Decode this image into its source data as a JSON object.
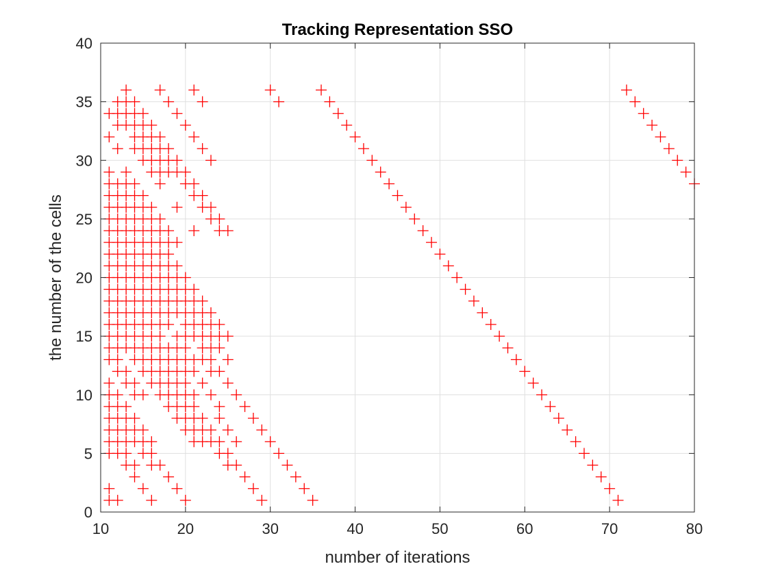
{
  "chart_data": {
    "type": "scatter",
    "title": "Tracking Representation SSO",
    "xlabel": "number of iterations",
    "ylabel": "the number of the cells",
    "xlim": [
      10,
      80
    ],
    "ylim": [
      0,
      40
    ],
    "xticks": [
      10,
      20,
      30,
      40,
      50,
      60,
      70,
      80
    ],
    "yticks": [
      0,
      5,
      10,
      15,
      20,
      25,
      30,
      35,
      40
    ],
    "grid": true,
    "marker": "+",
    "color": "#ff0000",
    "points": [
      [
        13,
        36
      ],
      [
        17,
        36
      ],
      [
        21,
        36
      ],
      [
        30,
        36
      ],
      [
        36,
        36
      ],
      [
        72,
        36
      ],
      [
        12,
        35
      ],
      [
        13,
        35
      ],
      [
        14,
        35
      ],
      [
        18,
        35
      ],
      [
        22,
        35
      ],
      [
        31,
        35
      ],
      [
        37,
        35
      ],
      [
        73,
        35
      ],
      [
        11,
        34
      ],
      [
        12,
        34
      ],
      [
        13,
        34
      ],
      [
        14,
        34
      ],
      [
        15,
        34
      ],
      [
        19,
        34
      ],
      [
        38,
        34
      ],
      [
        74,
        34
      ],
      [
        12,
        33
      ],
      [
        13,
        33
      ],
      [
        14,
        33
      ],
      [
        15,
        33
      ],
      [
        16,
        33
      ],
      [
        20,
        33
      ],
      [
        39,
        33
      ],
      [
        75,
        33
      ],
      [
        11,
        32
      ],
      [
        14,
        32
      ],
      [
        15,
        32
      ],
      [
        16,
        32
      ],
      [
        17,
        32
      ],
      [
        21,
        32
      ],
      [
        40,
        32
      ],
      [
        76,
        32
      ],
      [
        12,
        31
      ],
      [
        14,
        31
      ],
      [
        15,
        31
      ],
      [
        16,
        31
      ],
      [
        17,
        31
      ],
      [
        18,
        31
      ],
      [
        22,
        31
      ],
      [
        41,
        31
      ],
      [
        77,
        31
      ],
      [
        15,
        30
      ],
      [
        16,
        30
      ],
      [
        17,
        30
      ],
      [
        18,
        30
      ],
      [
        19,
        30
      ],
      [
        23,
        30
      ],
      [
        42,
        30
      ],
      [
        78,
        30
      ],
      [
        11,
        29
      ],
      [
        13,
        29
      ],
      [
        16,
        29
      ],
      [
        17,
        29
      ],
      [
        18,
        29
      ],
      [
        19,
        29
      ],
      [
        20,
        29
      ],
      [
        43,
        29
      ],
      [
        79,
        29
      ],
      [
        11,
        28
      ],
      [
        12,
        28
      ],
      [
        13,
        28
      ],
      [
        14,
        28
      ],
      [
        17,
        28
      ],
      [
        20,
        28
      ],
      [
        21,
        28
      ],
      [
        44,
        28
      ],
      [
        80,
        28
      ],
      [
        11,
        27
      ],
      [
        12,
        27
      ],
      [
        13,
        27
      ],
      [
        14,
        27
      ],
      [
        15,
        27
      ],
      [
        21,
        27
      ],
      [
        22,
        27
      ],
      [
        45,
        27
      ],
      [
        11,
        26
      ],
      [
        12,
        26
      ],
      [
        13,
        26
      ],
      [
        14,
        26
      ],
      [
        15,
        26
      ],
      [
        16,
        26
      ],
      [
        19,
        26
      ],
      [
        22,
        26
      ],
      [
        23,
        26
      ],
      [
        46,
        26
      ],
      [
        11,
        25
      ],
      [
        12,
        25
      ],
      [
        13,
        25
      ],
      [
        14,
        25
      ],
      [
        15,
        25
      ],
      [
        16,
        25
      ],
      [
        17,
        25
      ],
      [
        23,
        25
      ],
      [
        24,
        25
      ],
      [
        47,
        25
      ],
      [
        11,
        24
      ],
      [
        12,
        24
      ],
      [
        13,
        24
      ],
      [
        14,
        24
      ],
      [
        15,
        24
      ],
      [
        16,
        24
      ],
      [
        17,
        24
      ],
      [
        18,
        24
      ],
      [
        21,
        24
      ],
      [
        24,
        24
      ],
      [
        25,
        24
      ],
      [
        48,
        24
      ],
      [
        11,
        23
      ],
      [
        12,
        23
      ],
      [
        13,
        23
      ],
      [
        14,
        23
      ],
      [
        15,
        23
      ],
      [
        16,
        23
      ],
      [
        17,
        23
      ],
      [
        18,
        23
      ],
      [
        19,
        23
      ],
      [
        49,
        23
      ],
      [
        11,
        22
      ],
      [
        12,
        22
      ],
      [
        13,
        22
      ],
      [
        14,
        22
      ],
      [
        15,
        22
      ],
      [
        16,
        22
      ],
      [
        17,
        22
      ],
      [
        18,
        22
      ],
      [
        50,
        22
      ],
      [
        11,
        21
      ],
      [
        12,
        21
      ],
      [
        13,
        21
      ],
      [
        14,
        21
      ],
      [
        15,
        21
      ],
      [
        16,
        21
      ],
      [
        17,
        21
      ],
      [
        18,
        21
      ],
      [
        19,
        21
      ],
      [
        51,
        21
      ],
      [
        11,
        20
      ],
      [
        12,
        20
      ],
      [
        13,
        20
      ],
      [
        14,
        20
      ],
      [
        15,
        20
      ],
      [
        16,
        20
      ],
      [
        17,
        20
      ],
      [
        18,
        20
      ],
      [
        19,
        20
      ],
      [
        20,
        20
      ],
      [
        52,
        20
      ],
      [
        11,
        19
      ],
      [
        12,
        19
      ],
      [
        13,
        19
      ],
      [
        14,
        19
      ],
      [
        15,
        19
      ],
      [
        16,
        19
      ],
      [
        17,
        19
      ],
      [
        18,
        19
      ],
      [
        19,
        19
      ],
      [
        20,
        19
      ],
      [
        21,
        19
      ],
      [
        53,
        19
      ],
      [
        11,
        18
      ],
      [
        12,
        18
      ],
      [
        13,
        18
      ],
      [
        14,
        18
      ],
      [
        15,
        18
      ],
      [
        16,
        18
      ],
      [
        17,
        18
      ],
      [
        18,
        18
      ],
      [
        19,
        18
      ],
      [
        20,
        18
      ],
      [
        21,
        18
      ],
      [
        22,
        18
      ],
      [
        54,
        18
      ],
      [
        11,
        17
      ],
      [
        12,
        17
      ],
      [
        13,
        17
      ],
      [
        14,
        17
      ],
      [
        15,
        17
      ],
      [
        16,
        17
      ],
      [
        17,
        17
      ],
      [
        18,
        17
      ],
      [
        19,
        17
      ],
      [
        20,
        17
      ],
      [
        21,
        17
      ],
      [
        22,
        17
      ],
      [
        23,
        17
      ],
      [
        55,
        17
      ],
      [
        11,
        16
      ],
      [
        12,
        16
      ],
      [
        13,
        16
      ],
      [
        14,
        16
      ],
      [
        15,
        16
      ],
      [
        16,
        16
      ],
      [
        17,
        16
      ],
      [
        18,
        16
      ],
      [
        20,
        16
      ],
      [
        21,
        16
      ],
      [
        22,
        16
      ],
      [
        23,
        16
      ],
      [
        24,
        16
      ],
      [
        56,
        16
      ],
      [
        11,
        15
      ],
      [
        12,
        15
      ],
      [
        13,
        15
      ],
      [
        14,
        15
      ],
      [
        15,
        15
      ],
      [
        16,
        15
      ],
      [
        17,
        15
      ],
      [
        19,
        15
      ],
      [
        20,
        15
      ],
      [
        21,
        15
      ],
      [
        22,
        15
      ],
      [
        23,
        15
      ],
      [
        24,
        15
      ],
      [
        25,
        15
      ],
      [
        57,
        15
      ],
      [
        11,
        14
      ],
      [
        12,
        14
      ],
      [
        13,
        14
      ],
      [
        14,
        14
      ],
      [
        15,
        14
      ],
      [
        16,
        14
      ],
      [
        17,
        14
      ],
      [
        18,
        14
      ],
      [
        19,
        14
      ],
      [
        20,
        14
      ],
      [
        22,
        14
      ],
      [
        23,
        14
      ],
      [
        24,
        14
      ],
      [
        58,
        14
      ],
      [
        11,
        13
      ],
      [
        12,
        13
      ],
      [
        14,
        13
      ],
      [
        15,
        13
      ],
      [
        16,
        13
      ],
      [
        17,
        13
      ],
      [
        18,
        13
      ],
      [
        19,
        13
      ],
      [
        20,
        13
      ],
      [
        21,
        13
      ],
      [
        22,
        13
      ],
      [
        23,
        13
      ],
      [
        25,
        13
      ],
      [
        59,
        13
      ],
      [
        12,
        12
      ],
      [
        13,
        12
      ],
      [
        15,
        12
      ],
      [
        16,
        12
      ],
      [
        17,
        12
      ],
      [
        18,
        12
      ],
      [
        19,
        12
      ],
      [
        20,
        12
      ],
      [
        21,
        12
      ],
      [
        23,
        12
      ],
      [
        24,
        12
      ],
      [
        60,
        12
      ],
      [
        11,
        11
      ],
      [
        13,
        11
      ],
      [
        14,
        11
      ],
      [
        16,
        11
      ],
      [
        17,
        11
      ],
      [
        18,
        11
      ],
      [
        19,
        11
      ],
      [
        20,
        11
      ],
      [
        22,
        11
      ],
      [
        25,
        11
      ],
      [
        61,
        11
      ],
      [
        11,
        10
      ],
      [
        12,
        10
      ],
      [
        14,
        10
      ],
      [
        15,
        10
      ],
      [
        17,
        10
      ],
      [
        18,
        10
      ],
      [
        19,
        10
      ],
      [
        20,
        10
      ],
      [
        21,
        10
      ],
      [
        23,
        10
      ],
      [
        26,
        10
      ],
      [
        62,
        10
      ],
      [
        11,
        9
      ],
      [
        12,
        9
      ],
      [
        13,
        9
      ],
      [
        18,
        9
      ],
      [
        19,
        9
      ],
      [
        20,
        9
      ],
      [
        21,
        9
      ],
      [
        24,
        9
      ],
      [
        27,
        9
      ],
      [
        63,
        9
      ],
      [
        11,
        8
      ],
      [
        12,
        8
      ],
      [
        13,
        8
      ],
      [
        14,
        8
      ],
      [
        19,
        8
      ],
      [
        20,
        8
      ],
      [
        21,
        8
      ],
      [
        22,
        8
      ],
      [
        24,
        8
      ],
      [
        28,
        8
      ],
      [
        64,
        8
      ],
      [
        11,
        7
      ],
      [
        12,
        7
      ],
      [
        13,
        7
      ],
      [
        14,
        7
      ],
      [
        15,
        7
      ],
      [
        20,
        7
      ],
      [
        21,
        7
      ],
      [
        22,
        7
      ],
      [
        23,
        7
      ],
      [
        25,
        7
      ],
      [
        29,
        7
      ],
      [
        65,
        7
      ],
      [
        11,
        6
      ],
      [
        12,
        6
      ],
      [
        13,
        6
      ],
      [
        14,
        6
      ],
      [
        15,
        6
      ],
      [
        16,
        6
      ],
      [
        21,
        6
      ],
      [
        22,
        6
      ],
      [
        23,
        6
      ],
      [
        24,
        6
      ],
      [
        26,
        6
      ],
      [
        30,
        6
      ],
      [
        66,
        6
      ],
      [
        11,
        5
      ],
      [
        12,
        5
      ],
      [
        13,
        5
      ],
      [
        15,
        5
      ],
      [
        16,
        5
      ],
      [
        24,
        5
      ],
      [
        25,
        5
      ],
      [
        31,
        5
      ],
      [
        67,
        5
      ],
      [
        13,
        4
      ],
      [
        14,
        4
      ],
      [
        16,
        4
      ],
      [
        17,
        4
      ],
      [
        25,
        4
      ],
      [
        26,
        4
      ],
      [
        32,
        4
      ],
      [
        68,
        4
      ],
      [
        14,
        3
      ],
      [
        18,
        3
      ],
      [
        27,
        3
      ],
      [
        33,
        3
      ],
      [
        69,
        3
      ],
      [
        11,
        2
      ],
      [
        15,
        2
      ],
      [
        19,
        2
      ],
      [
        28,
        2
      ],
      [
        34,
        2
      ],
      [
        70,
        2
      ],
      [
        11,
        1
      ],
      [
        12,
        1
      ],
      [
        16,
        1
      ],
      [
        20,
        1
      ],
      [
        29,
        1
      ],
      [
        35,
        1
      ],
      [
        71,
        1
      ]
    ]
  }
}
